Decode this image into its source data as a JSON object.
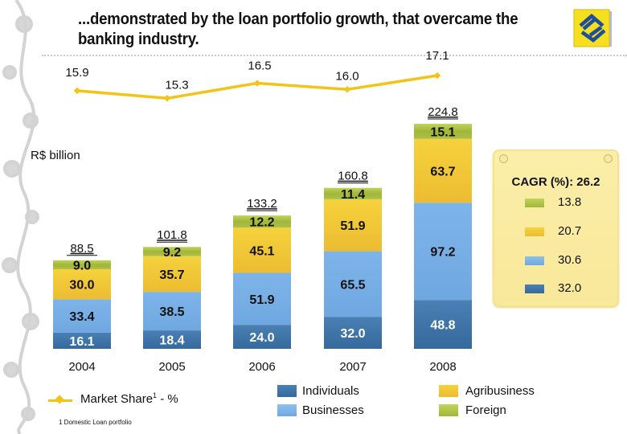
{
  "slide": {
    "title": "...demonstrated by the loan portfolio growth, that overcame the banking industry.",
    "unit_label": "R$ billion",
    "footnote": "1 Domestic Loan portfolio",
    "logo": "banco-do-brasil-logo-icon"
  },
  "colors": {
    "individuals": "#3e74a8",
    "businesses": "#76aee6",
    "agribusiness": "#f0c534",
    "foreign": "#a6bd3e",
    "market_share_line": "#f2c417",
    "cagr_panel": "#faeca2"
  },
  "cagr": {
    "title": "CAGR (%): 26.2",
    "items": [
      {
        "series": "Foreign",
        "value": "13.8",
        "color": "#a6bd3e"
      },
      {
        "series": "Agribusiness",
        "value": "20.7",
        "color": "#f0c534"
      },
      {
        "series": "Businesses",
        "value": "30.6",
        "color": "#76aee6"
      },
      {
        "series": "Individuals",
        "value": "32.0",
        "color": "#3e74a8"
      }
    ]
  },
  "legend": {
    "market_share_label": "Market Share",
    "market_share_sup": "1",
    "market_share_suffix": " - %",
    "items": [
      {
        "name": "Individuals",
        "color": "#3e74a8"
      },
      {
        "name": "Businesses",
        "color": "#76aee6"
      },
      {
        "name": "Agribusiness",
        "color": "#f0c534"
      },
      {
        "name": "Foreign",
        "color": "#a6bd3e"
      }
    ]
  },
  "chart_data": [
    {
      "type": "bar",
      "stacked": true,
      "title": "Loan portfolio",
      "ylabel": "R$ billion",
      "xlabel": "",
      "categories": [
        "2004",
        "2005",
        "2006",
        "2007",
        "2008"
      ],
      "series": [
        {
          "name": "Individuals",
          "values": [
            16.1,
            18.4,
            24.0,
            32.0,
            48.8
          ]
        },
        {
          "name": "Businesses",
          "values": [
            33.4,
            38.5,
            51.9,
            65.5,
            97.2
          ]
        },
        {
          "name": "Agribusiness",
          "values": [
            30.0,
            35.7,
            45.1,
            51.9,
            63.7
          ]
        },
        {
          "name": "Foreign",
          "values": [
            9.0,
            9.2,
            12.2,
            11.4,
            15.1
          ]
        }
      ],
      "totals": [
        88.5,
        101.8,
        133.2,
        160.8,
        224.8
      ],
      "ylim": [
        0,
        224.8
      ],
      "grid": false,
      "legend_position": "bottom"
    },
    {
      "type": "line",
      "title": "Market Share - %",
      "categories": [
        "2004",
        "2005",
        "2006",
        "2007",
        "2008"
      ],
      "series": [
        {
          "name": "Market Share",
          "values": [
            15.9,
            15.3,
            16.5,
            16.0,
            17.1
          ]
        }
      ],
      "ylim": [
        15.0,
        17.5
      ]
    }
  ]
}
